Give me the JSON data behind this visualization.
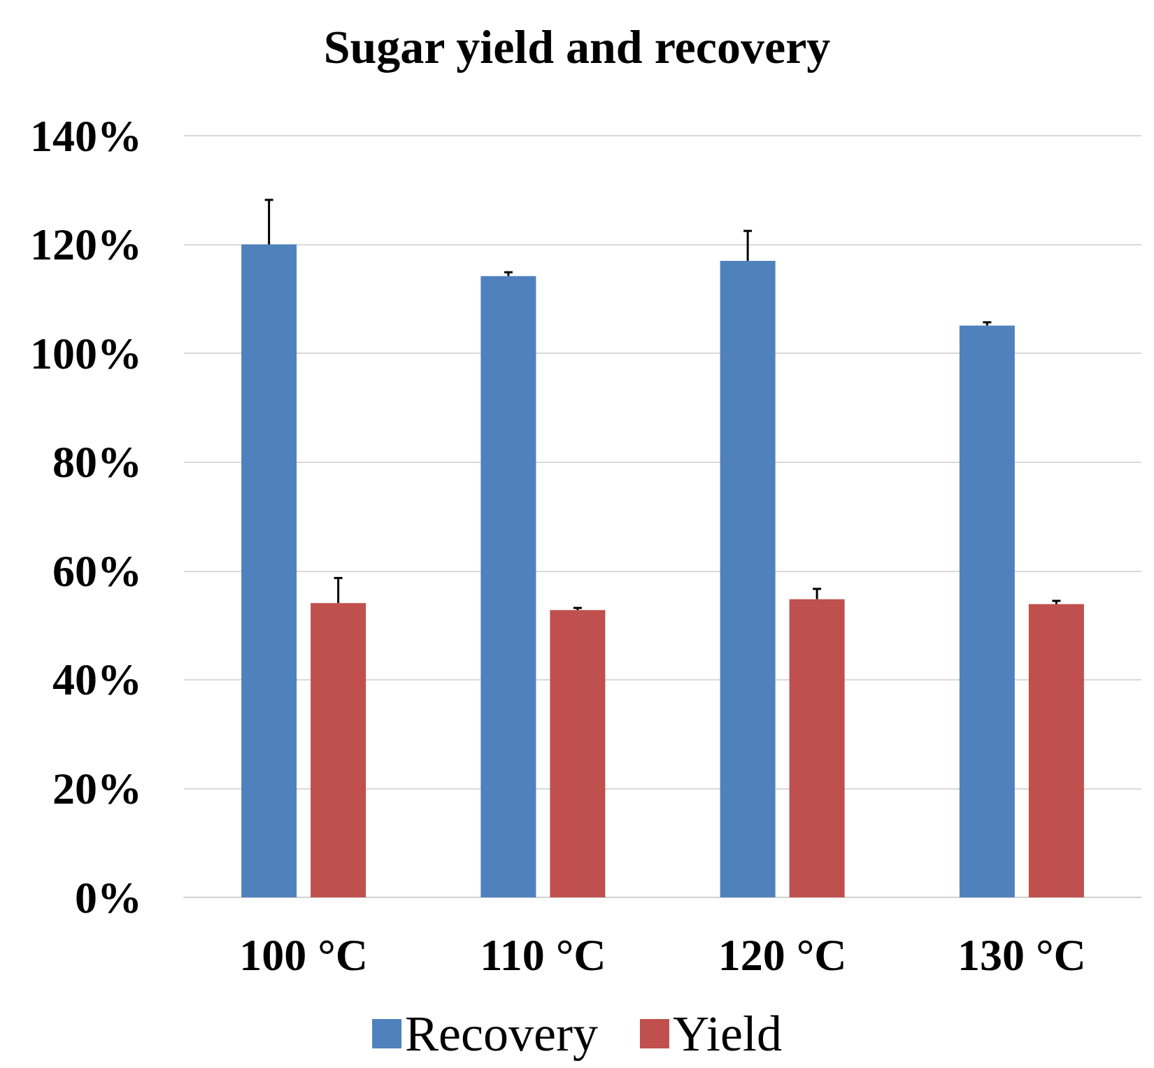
{
  "chart_data": {
    "type": "bar",
    "title": "Sugar yield and recovery",
    "categories": [
      "100 °C",
      "110 °C",
      "120 °C",
      "130 °C"
    ],
    "series": [
      {
        "name": "Recovery",
        "color": "#4f81bd",
        "values": [
          120,
          114.2,
          117,
          105.1
        ],
        "errors": [
          [
            120,
            128.2
          ],
          [
            114.2,
            114.9
          ],
          [
            117,
            122.5
          ],
          [
            105.1,
            105.7
          ]
        ]
      },
      {
        "name": "Yield",
        "color": "#c0504d",
        "values": [
          54.1,
          52.8,
          54.8,
          53.9
        ],
        "errors": [
          [
            54.1,
            58.7
          ],
          [
            52.8,
            53.2
          ],
          [
            54.8,
            56.7
          ],
          [
            53.9,
            54.5
          ]
        ]
      }
    ],
    "ylim": [
      0,
      140
    ],
    "yticks": [
      {
        "value": 0,
        "label": "0%"
      },
      {
        "value": 20,
        "label": "20%"
      },
      {
        "value": 40,
        "label": "40%"
      },
      {
        "value": 60,
        "label": "60%"
      },
      {
        "value": 80,
        "label": "80%"
      },
      {
        "value": 100,
        "label": "100%"
      },
      {
        "value": 120,
        "label": "120%"
      },
      {
        "value": 140,
        "label": "140%"
      }
    ],
    "grid": "y",
    "legend": "bottom"
  }
}
